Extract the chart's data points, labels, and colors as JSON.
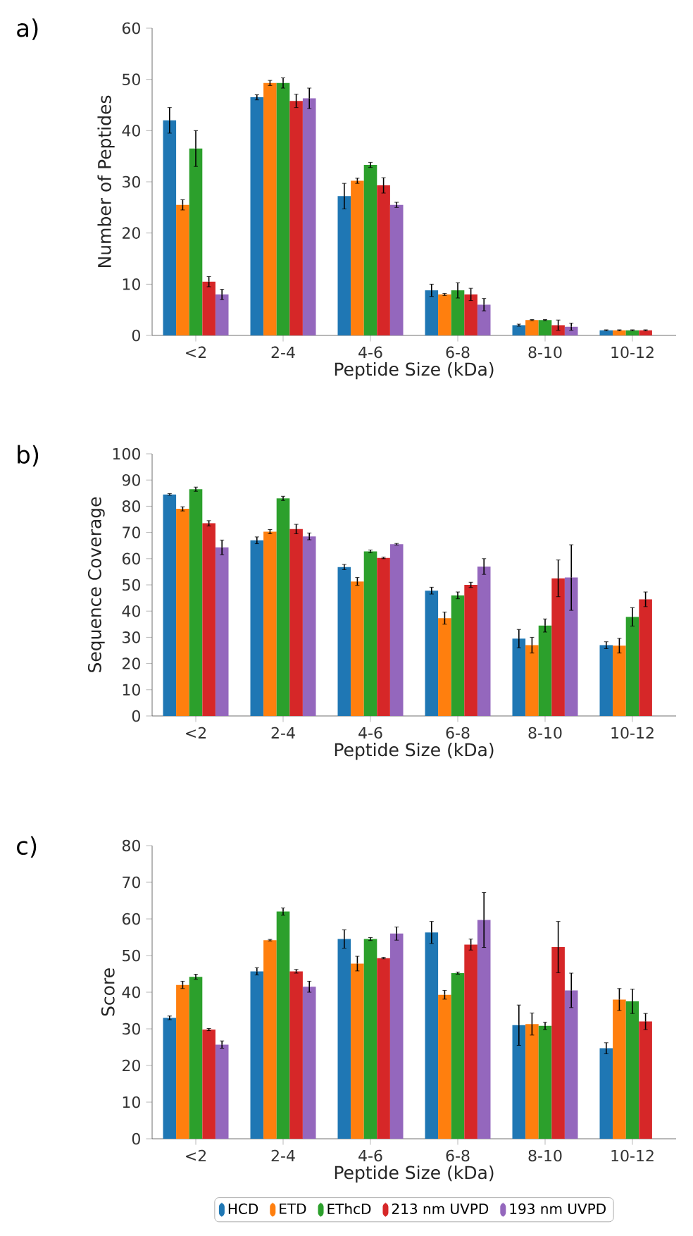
{
  "chart_data": [
    {
      "type": "bar",
      "title": "a)",
      "xlabel": "Peptide Size (kDa)",
      "ylabel": "Number of Peptides",
      "categories": [
        "<2",
        "2-4",
        "4-6",
        "6-8",
        "8-10",
        "10-12"
      ],
      "ylim": [
        0,
        60
      ],
      "yticks": [
        0,
        10,
        20,
        30,
        40,
        50,
        60
      ],
      "series": [
        {
          "color": "#1f77b4",
          "values": [
            42,
            46.5,
            27.2,
            8.8,
            2,
            1
          ],
          "errors": [
            2.5,
            0.5,
            2.5,
            1.2,
            0.2,
            0.1
          ]
        },
        {
          "color": "#ff7f0e",
          "values": [
            25.5,
            49.3,
            30.2,
            8,
            3,
            1
          ],
          "errors": [
            1,
            0.5,
            0.5,
            0.2,
            0.1,
            0.1
          ]
        },
        {
          "color": "#2ca02c",
          "values": [
            36.5,
            49.3,
            33.3,
            8.8,
            3,
            1
          ],
          "errors": [
            3.5,
            1,
            0.5,
            1.5,
            0.1,
            0.1
          ]
        },
        {
          "color": "#d62728",
          "values": [
            10.5,
            45.8,
            29.3,
            8,
            2,
            1
          ],
          "errors": [
            1,
            1.3,
            1.5,
            1.2,
            1,
            0.1
          ]
        },
        {
          "color": "#9467bd",
          "values": [
            8,
            46.3,
            25.5,
            6,
            1.7,
            null
          ],
          "errors": [
            1,
            2,
            0.5,
            1.2,
            0.7,
            null
          ]
        }
      ]
    },
    {
      "type": "bar",
      "title": "b)",
      "xlabel": "Peptide Size (kDa)",
      "ylabel": "Sequence Coverage",
      "categories": [
        "<2",
        "2-4",
        "4-6",
        "6-8",
        "8-10",
        "10-12"
      ],
      "ylim": [
        0,
        100
      ],
      "yticks": [
        0,
        10,
        20,
        30,
        40,
        50,
        60,
        70,
        80,
        90,
        100
      ],
      "series": [
        {
          "color": "#1f77b4",
          "values": [
            84.5,
            67,
            56.8,
            47.8,
            29.5,
            27
          ],
          "errors": [
            0.3,
            1.3,
            1,
            1.3,
            3.5,
            1.3
          ]
        },
        {
          "color": "#ff7f0e",
          "values": [
            79,
            70.3,
            51.3,
            37.3,
            27,
            26.8
          ],
          "errors": [
            0.8,
            0.8,
            1.5,
            2.3,
            3,
            2.8
          ]
        },
        {
          "color": "#2ca02c",
          "values": [
            86.5,
            83,
            62.8,
            46,
            34.5,
            37.8
          ],
          "errors": [
            0.8,
            0.8,
            0.5,
            1.3,
            2.5,
            3.5
          ]
        },
        {
          "color": "#d62728",
          "values": [
            73.5,
            71.3,
            60.3,
            50,
            52.5,
            44.5
          ],
          "errors": [
            1,
            1.8,
            0.3,
            1,
            7,
            2.8
          ]
        },
        {
          "color": "#9467bd",
          "values": [
            64.3,
            68.5,
            65.5,
            57,
            52.8,
            null
          ],
          "errors": [
            2.8,
            1.3,
            0.3,
            3,
            12.5,
            null
          ]
        }
      ]
    },
    {
      "type": "bar",
      "title": "c)",
      "xlabel": "Peptide Size (kDa)",
      "ylabel": "Score",
      "categories": [
        "<2",
        "2-4",
        "4-6",
        "6-8",
        "8-10",
        "10-12"
      ],
      "ylim": [
        0,
        80
      ],
      "yticks": [
        0,
        10,
        20,
        30,
        40,
        50,
        60,
        70,
        80
      ],
      "legend": "bottom",
      "series": [
        {
          "name": "HCD",
          "color": "#1f77b4",
          "values": [
            33,
            45.7,
            54.5,
            56.3,
            31,
            24.7
          ],
          "errors": [
            0.5,
            1,
            2.5,
            3,
            5.5,
            1.5
          ]
        },
        {
          "name": "ETD",
          "color": "#ff7f0e",
          "values": [
            42,
            54.2,
            47.8,
            39.3,
            31.3,
            38
          ],
          "errors": [
            1,
            0.2,
            2,
            1.2,
            3,
            3
          ]
        },
        {
          "name": "EThcD",
          "color": "#2ca02c",
          "values": [
            44.2,
            62,
            54.5,
            45.2,
            30.8,
            37.5
          ],
          "errors": [
            0.7,
            1,
            0.4,
            0.3,
            1,
            3.3
          ]
        },
        {
          "name": "213 nm UVPD",
          "color": "#d62728",
          "values": [
            29.8,
            45.7,
            49.3,
            53,
            52.3,
            32
          ],
          "errors": [
            0.3,
            0.5,
            0.2,
            1.5,
            7,
            2.2
          ]
        },
        {
          "name": "193 nm UVPD",
          "color": "#9467bd",
          "values": [
            25.7,
            41.5,
            56,
            59.7,
            40.5,
            null
          ],
          "errors": [
            1,
            1.5,
            1.8,
            7.5,
            4.7,
            null
          ]
        }
      ]
    }
  ]
}
